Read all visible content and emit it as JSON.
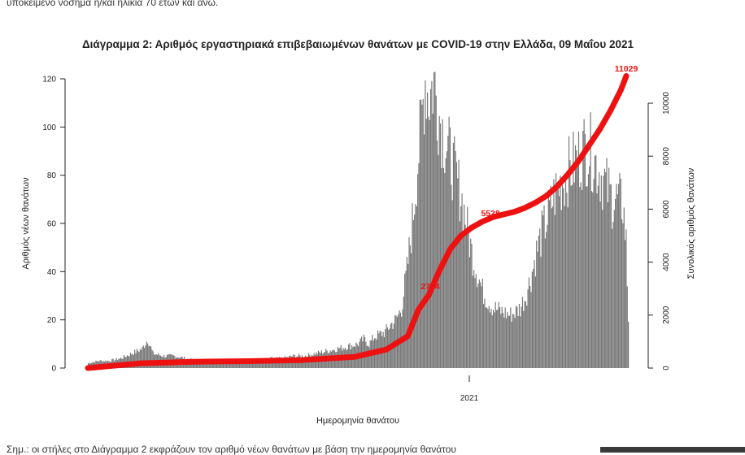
{
  "header_snippet": "υποκείμενο νόσημα ή/και ηλικία 70 ετών και άνω.",
  "footer_snippet": "Σημ.: οι στήλες στο Διάγραμμα 2 εκφράζουν τον αριθμό νέων θανάτων με βάση την ημερομηνία θανάτου",
  "chart_data": {
    "type": "bar",
    "title": "Διάγραμμα 2: Αριθμός εργαστηριακά επιβεβαιωμένων θανάτων με COVID-19 στην Ελλάδα, 09 Μαΐου 2021",
    "xlabel": "Ημερομηνία θανάτου",
    "ylabel": "Αριθμός νέων θανάτων",
    "y2label": "Συνολικός αριθμός θανάτων",
    "ylim": [
      0,
      120
    ],
    "y2lim": [
      0,
      11029
    ],
    "yticks": [
      "0",
      "20",
      "40",
      "60",
      "80",
      "100",
      "120"
    ],
    "y2ticks": [
      "0",
      "2000",
      "4000",
      "6000",
      "8000",
      "10000"
    ],
    "xticks": [
      "2021"
    ],
    "bar_color": "#777777",
    "line_color": "#ee1111",
    "series": [
      {
        "type": "bar",
        "x_range_days": [
          0,
          440
        ],
        "description_points": [
          [
            0,
            2
          ],
          [
            10,
            3
          ],
          [
            20,
            3
          ],
          [
            30,
            4
          ],
          [
            40,
            6
          ],
          [
            50,
            8
          ],
          [
            55,
            12
          ],
          [
            60,
            6
          ],
          [
            70,
            5
          ],
          [
            80,
            5
          ],
          [
            90,
            4
          ],
          [
            100,
            3
          ],
          [
            110,
            3
          ],
          [
            120,
            3
          ],
          [
            130,
            3
          ],
          [
            140,
            3
          ],
          [
            150,
            3
          ],
          [
            160,
            3
          ],
          [
            170,
            4
          ],
          [
            180,
            4
          ],
          [
            190,
            5
          ],
          [
            200,
            5
          ],
          [
            210,
            6
          ],
          [
            220,
            7
          ],
          [
            230,
            8
          ],
          [
            240,
            9
          ],
          [
            250,
            10
          ],
          [
            255,
            12
          ],
          [
            260,
            10
          ],
          [
            265,
            13
          ],
          [
            270,
            14
          ],
          [
            275,
            15
          ],
          [
            280,
            18
          ],
          [
            285,
            20
          ],
          [
            290,
            25
          ],
          [
            295,
            40
          ],
          [
            300,
            60
          ],
          [
            305,
            85
          ],
          [
            310,
            110
          ],
          [
            312,
            121
          ],
          [
            315,
            112
          ],
          [
            320,
            119
          ],
          [
            325,
            105
          ],
          [
            330,
            95
          ],
          [
            335,
            88
          ],
          [
            340,
            80
          ],
          [
            345,
            72
          ],
          [
            350,
            60
          ],
          [
            355,
            48
          ],
          [
            360,
            40
          ],
          [
            365,
            32
          ],
          [
            370,
            28
          ],
          [
            375,
            25
          ],
          [
            380,
            24
          ],
          [
            385,
            23
          ],
          [
            390,
            22
          ],
          [
            395,
            23
          ],
          [
            400,
            25
          ],
          [
            405,
            30
          ],
          [
            410,
            38
          ],
          [
            415,
            48
          ],
          [
            420,
            56
          ],
          [
            425,
            62
          ],
          [
            430,
            70
          ],
          [
            435,
            75
          ],
          [
            440,
            78
          ],
          [
            445,
            82
          ],
          [
            450,
            85
          ],
          [
            455,
            88
          ],
          [
            460,
            92
          ],
          [
            465,
            90
          ],
          [
            470,
            85
          ],
          [
            475,
            80
          ],
          [
            480,
            75
          ],
          [
            485,
            70
          ],
          [
            490,
            70
          ],
          [
            495,
            68
          ],
          [
            498,
            52
          ],
          [
            500,
            20
          ]
        ]
      },
      {
        "type": "line",
        "x_range_days": [
          0,
          500
        ],
        "description_points": [
          [
            0,
            0
          ],
          [
            50,
            180
          ],
          [
            100,
            240
          ],
          [
            150,
            260
          ],
          [
            200,
            300
          ],
          [
            250,
            420
          ],
          [
            280,
            700
          ],
          [
            300,
            1200
          ],
          [
            310,
            2200
          ],
          [
            320,
            2774
          ],
          [
            330,
            3700
          ],
          [
            340,
            4500
          ],
          [
            350,
            5000
          ],
          [
            360,
            5300
          ],
          [
            370,
            5528
          ],
          [
            380,
            5700
          ],
          [
            390,
            5800
          ],
          [
            400,
            5900
          ],
          [
            410,
            6050
          ],
          [
            420,
            6250
          ],
          [
            430,
            6500
          ],
          [
            440,
            6850
          ],
          [
            450,
            7300
          ],
          [
            460,
            7800
          ],
          [
            470,
            8400
          ],
          [
            480,
            9000
          ],
          [
            490,
            9700
          ],
          [
            500,
            10500
          ],
          [
            505,
            11029
          ]
        ]
      }
    ],
    "annotations": [
      "11029",
      "5528",
      "2774"
    ]
  }
}
